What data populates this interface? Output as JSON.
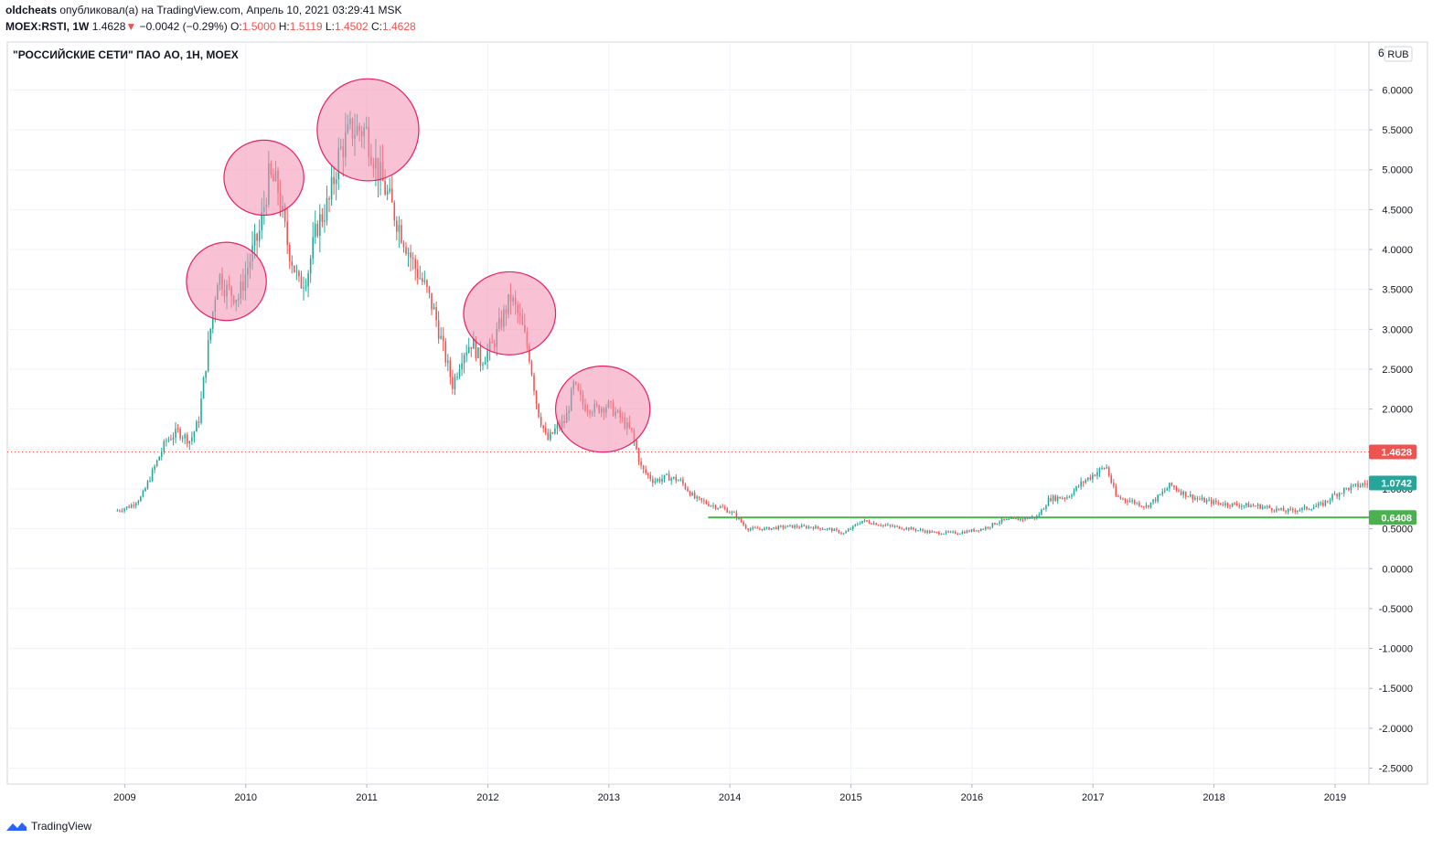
{
  "header": {
    "author": "oldcheats",
    "published_text": "опубликовал(а) на TradingView.com, Апрель 10, 2021 03:29:41 MSK",
    "symbol": "MOEX:RSTI, 1W",
    "last": "1.4628",
    "change_arrow": "▼",
    "change": "−0.0042 (−0.29%)",
    "o_label": "O:",
    "o_value": "1.5000",
    "h_label": "H:",
    "h_value": "1.5119",
    "l_label": "L:",
    "l_value": "1.4502",
    "c_label": "C:",
    "c_value": "1.4628"
  },
  "footer": {
    "brand": "TradingView"
  },
  "chart_data": {
    "type": "candlestick",
    "title": "\"РОССИЙСКИЕ СЕТИ\" ПАО АО, 1Н, MOEX",
    "currency": "RUB",
    "x_ticks": [
      "2009",
      "2010",
      "2011",
      "2012",
      "2013",
      "2014",
      "2015",
      "2016",
      "2017",
      "2018",
      "2019"
    ],
    "x_tick_years": [
      2009,
      2010,
      2011,
      2012,
      2013,
      2014,
      2015,
      2016,
      2017,
      2018,
      2019
    ],
    "xlim": [
      2008.03,
      2019.28
    ],
    "y_ticks": [
      "6.0000",
      "5.5000",
      "5.0000",
      "4.5000",
      "4.0000",
      "3.5000",
      "3.0000",
      "2.5000",
      "2.0000",
      "1.5000",
      "1.0000",
      "0.5000",
      "0.0000",
      "-0.5000",
      "-1.0000",
      "-1.5000",
      "-2.0000",
      "-2.5000"
    ],
    "y_tick_values": [
      6,
      5.5,
      5,
      4.5,
      4,
      3.5,
      3,
      2.5,
      2,
      1.5,
      1,
      0.5,
      0,
      -0.5,
      -1,
      -1.5,
      -2,
      -2.5
    ],
    "y_top_partial_label": "6",
    "ylim": [
      -2.7,
      6.6
    ],
    "price_path": [
      [
        2008.93,
        0.72
      ],
      [
        2009.05,
        0.78
      ],
      [
        2009.15,
        0.9
      ],
      [
        2009.25,
        1.25
      ],
      [
        2009.35,
        1.6
      ],
      [
        2009.45,
        1.72
      ],
      [
        2009.55,
        1.6
      ],
      [
        2009.62,
        1.85
      ],
      [
        2009.7,
        2.8
      ],
      [
        2009.78,
        3.7
      ],
      [
        2009.85,
        3.5
      ],
      [
        2009.95,
        3.4
      ],
      [
        2010.05,
        3.9
      ],
      [
        2010.12,
        4.2
      ],
      [
        2010.2,
        4.9
      ],
      [
        2010.27,
        4.8
      ],
      [
        2010.35,
        4.1
      ],
      [
        2010.45,
        3.55
      ],
      [
        2010.52,
        3.7
      ],
      [
        2010.6,
        4.3
      ],
      [
        2010.7,
        4.6
      ],
      [
        2010.78,
        5.2
      ],
      [
        2010.88,
        5.5
      ],
      [
        2011.0,
        5.5
      ],
      [
        2011.1,
        5.0
      ],
      [
        2011.2,
        4.6
      ],
      [
        2011.3,
        4.2
      ],
      [
        2011.4,
        3.8
      ],
      [
        2011.5,
        3.5
      ],
      [
        2011.57,
        3.2
      ],
      [
        2011.65,
        2.7
      ],
      [
        2011.72,
        2.3
      ],
      [
        2011.8,
        2.7
      ],
      [
        2011.88,
        2.85
      ],
      [
        2011.95,
        2.6
      ],
      [
        2012.05,
        2.8
      ],
      [
        2012.12,
        3.1
      ],
      [
        2012.2,
        3.4
      ],
      [
        2012.28,
        3.1
      ],
      [
        2012.35,
        2.7
      ],
      [
        2012.42,
        2.0
      ],
      [
        2012.5,
        1.6
      ],
      [
        2012.57,
        1.75
      ],
      [
        2012.65,
        1.85
      ],
      [
        2012.72,
        2.3
      ],
      [
        2012.8,
        2.05
      ],
      [
        2012.9,
        2.0
      ],
      [
        2013.0,
        2.05
      ],
      [
        2013.1,
        1.9
      ],
      [
        2013.2,
        1.7
      ],
      [
        2013.28,
        1.25
      ],
      [
        2013.38,
        1.1
      ],
      [
        2013.5,
        1.15
      ],
      [
        2013.6,
        1.1
      ],
      [
        2013.72,
        0.88
      ],
      [
        2013.85,
        0.8
      ],
      [
        2013.95,
        0.76
      ],
      [
        2014.05,
        0.68
      ],
      [
        2014.15,
        0.5
      ],
      [
        2014.3,
        0.5
      ],
      [
        2014.5,
        0.53
      ],
      [
        2014.7,
        0.52
      ],
      [
        2014.85,
        0.49
      ],
      [
        2014.95,
        0.44
      ],
      [
        2015.1,
        0.6
      ],
      [
        2015.3,
        0.54
      ],
      [
        2015.5,
        0.5
      ],
      [
        2015.7,
        0.45
      ],
      [
        2015.9,
        0.45
      ],
      [
        2016.1,
        0.5
      ],
      [
        2016.25,
        0.6
      ],
      [
        2016.4,
        0.62
      ],
      [
        2016.55,
        0.65
      ],
      [
        2016.65,
        0.88
      ],
      [
        2016.8,
        0.9
      ],
      [
        2016.92,
        1.08
      ],
      [
        2017.05,
        1.22
      ],
      [
        2017.12,
        1.28
      ],
      [
        2017.2,
        0.9
      ],
      [
        2017.32,
        0.85
      ],
      [
        2017.45,
        0.78
      ],
      [
        2017.55,
        0.9
      ],
      [
        2017.65,
        1.05
      ],
      [
        2017.75,
        0.95
      ],
      [
        2017.9,
        0.86
      ],
      [
        2018.05,
        0.82
      ],
      [
        2018.2,
        0.8
      ],
      [
        2018.4,
        0.78
      ],
      [
        2018.6,
        0.72
      ],
      [
        2018.75,
        0.75
      ],
      [
        2018.9,
        0.8
      ],
      [
        2019.0,
        0.92
      ],
      [
        2019.1,
        1.0
      ],
      [
        2019.2,
        1.04
      ],
      [
        2019.28,
        1.07
      ]
    ],
    "highlight_circles": [
      {
        "x": 2009.84,
        "y": 3.6,
        "rx": 0.33,
        "ry": 0.49
      },
      {
        "x": 2010.15,
        "y": 4.9,
        "rx": 0.33,
        "ry": 0.47
      },
      {
        "x": 2011.01,
        "y": 5.5,
        "rx": 0.42,
        "ry": 0.64
      },
      {
        "x": 2012.18,
        "y": 3.2,
        "rx": 0.38,
        "ry": 0.52
      },
      {
        "x": 2012.95,
        "y": 2.0,
        "rx": 0.39,
        "ry": 0.54
      }
    ],
    "support_line": {
      "x_start": 2013.82,
      "x_end": 2019.28,
      "value": 0.6408,
      "label": "0.6408",
      "color": "#4caf50"
    },
    "price_line": {
      "value": 1.4628,
      "label": "1.4628",
      "color": "#ef5350"
    },
    "last_close": {
      "value": 1.0742,
      "label": "1.0742",
      "color": "#26a69a"
    },
    "colors": {
      "up": "#26a69a",
      "down": "#ef5350",
      "circle_fill": "#f48fb1",
      "circle_stroke": "#e91e63",
      "grid": "#f0f3fa",
      "axis_text": "#131722"
    },
    "grid": true
  }
}
